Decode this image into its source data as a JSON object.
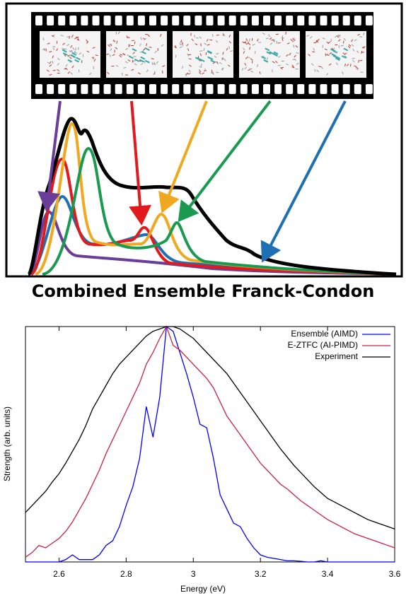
{
  "figure": {
    "title": "Combined Ensemble Franck-Condon"
  },
  "chart_data": {
    "type": "line",
    "x_label": "Energy (eV)",
    "y_label": "Strength (arb. units)",
    "xlim": [
      2.5,
      3.6
    ],
    "ylim": [
      0,
      1
    ],
    "xticks": [
      2.6,
      2.8,
      3,
      3.2,
      3.4,
      3.6
    ],
    "grid": false,
    "legend": "upper right",
    "x": [
      2.5,
      2.52,
      2.54,
      2.56,
      2.58,
      2.6,
      2.62,
      2.64,
      2.66,
      2.68,
      2.7,
      2.72,
      2.74,
      2.76,
      2.78,
      2.8,
      2.82,
      2.84,
      2.86,
      2.88,
      2.9,
      2.92,
      2.94,
      2.96,
      2.98,
      3.0,
      3.02,
      3.04,
      3.06,
      3.08,
      3.1,
      3.12,
      3.14,
      3.16,
      3.18,
      3.2,
      3.22,
      3.24,
      3.26,
      3.28,
      3.3,
      3.32,
      3.34,
      3.36,
      3.38,
      3.4,
      3.42,
      3.44,
      3.46,
      3.48,
      3.5,
      3.52,
      3.54,
      3.56,
      3.58,
      3.6
    ],
    "series": [
      {
        "name": "Ensemble (AIMD)",
        "color": "#0000ff",
        "values": [
          0,
          0,
          0,
          0,
          0,
          0,
          0.01,
          0.03,
          0.01,
          0.01,
          0.01,
          0.03,
          0.07,
          0.09,
          0.15,
          0.24,
          0.32,
          0.44,
          0.66,
          0.53,
          0.7,
          1.0,
          0.98,
          0.89,
          0.8,
          0.7,
          0.585,
          0.57,
          0.44,
          0.285,
          0.225,
          0.165,
          0.15,
          0.1,
          0.06,
          0.03,
          0.02,
          0.015,
          0.01,
          0.005,
          0.005,
          0.003,
          0,
          0,
          0.005,
          0,
          0,
          0,
          0,
          0,
          0,
          0,
          0,
          0,
          0,
          0
        ]
      },
      {
        "name": "E-ZTFC (AI-PIMD)",
        "color": "#c8204a",
        "values": [
          0.02,
          0.04,
          0.07,
          0.06,
          0.08,
          0.1,
          0.13,
          0.17,
          0.22,
          0.27,
          0.33,
          0.39,
          0.46,
          0.52,
          0.58,
          0.64,
          0.7,
          0.76,
          0.84,
          0.89,
          0.95,
          1.0,
          0.92,
          0.9,
          0.87,
          0.84,
          0.81,
          0.78,
          0.74,
          0.68,
          0.62,
          0.58,
          0.54,
          0.5,
          0.46,
          0.42,
          0.39,
          0.36,
          0.33,
          0.31,
          0.285,
          0.26,
          0.24,
          0.22,
          0.2,
          0.18,
          0.165,
          0.15,
          0.135,
          0.12,
          0.11,
          0.1,
          0.09,
          0.08,
          0.07,
          0.06
        ]
      },
      {
        "name": "Experiment",
        "color": "#000000",
        "values": [
          0.21,
          0.24,
          0.27,
          0.3,
          0.34,
          0.375,
          0.42,
          0.47,
          0.52,
          0.58,
          0.65,
          0.7,
          0.75,
          0.8,
          0.84,
          0.87,
          0.9,
          0.93,
          0.96,
          0.98,
          0.99,
          1.0,
          1.0,
          0.99,
          0.97,
          0.95,
          0.92,
          0.89,
          0.86,
          0.83,
          0.8,
          0.76,
          0.72,
          0.68,
          0.64,
          0.6,
          0.56,
          0.52,
          0.48,
          0.445,
          0.41,
          0.38,
          0.35,
          0.32,
          0.295,
          0.27,
          0.255,
          0.24,
          0.225,
          0.21,
          0.195,
          0.18,
          0.17,
          0.16,
          0.15,
          0.14
        ]
      }
    ]
  }
}
